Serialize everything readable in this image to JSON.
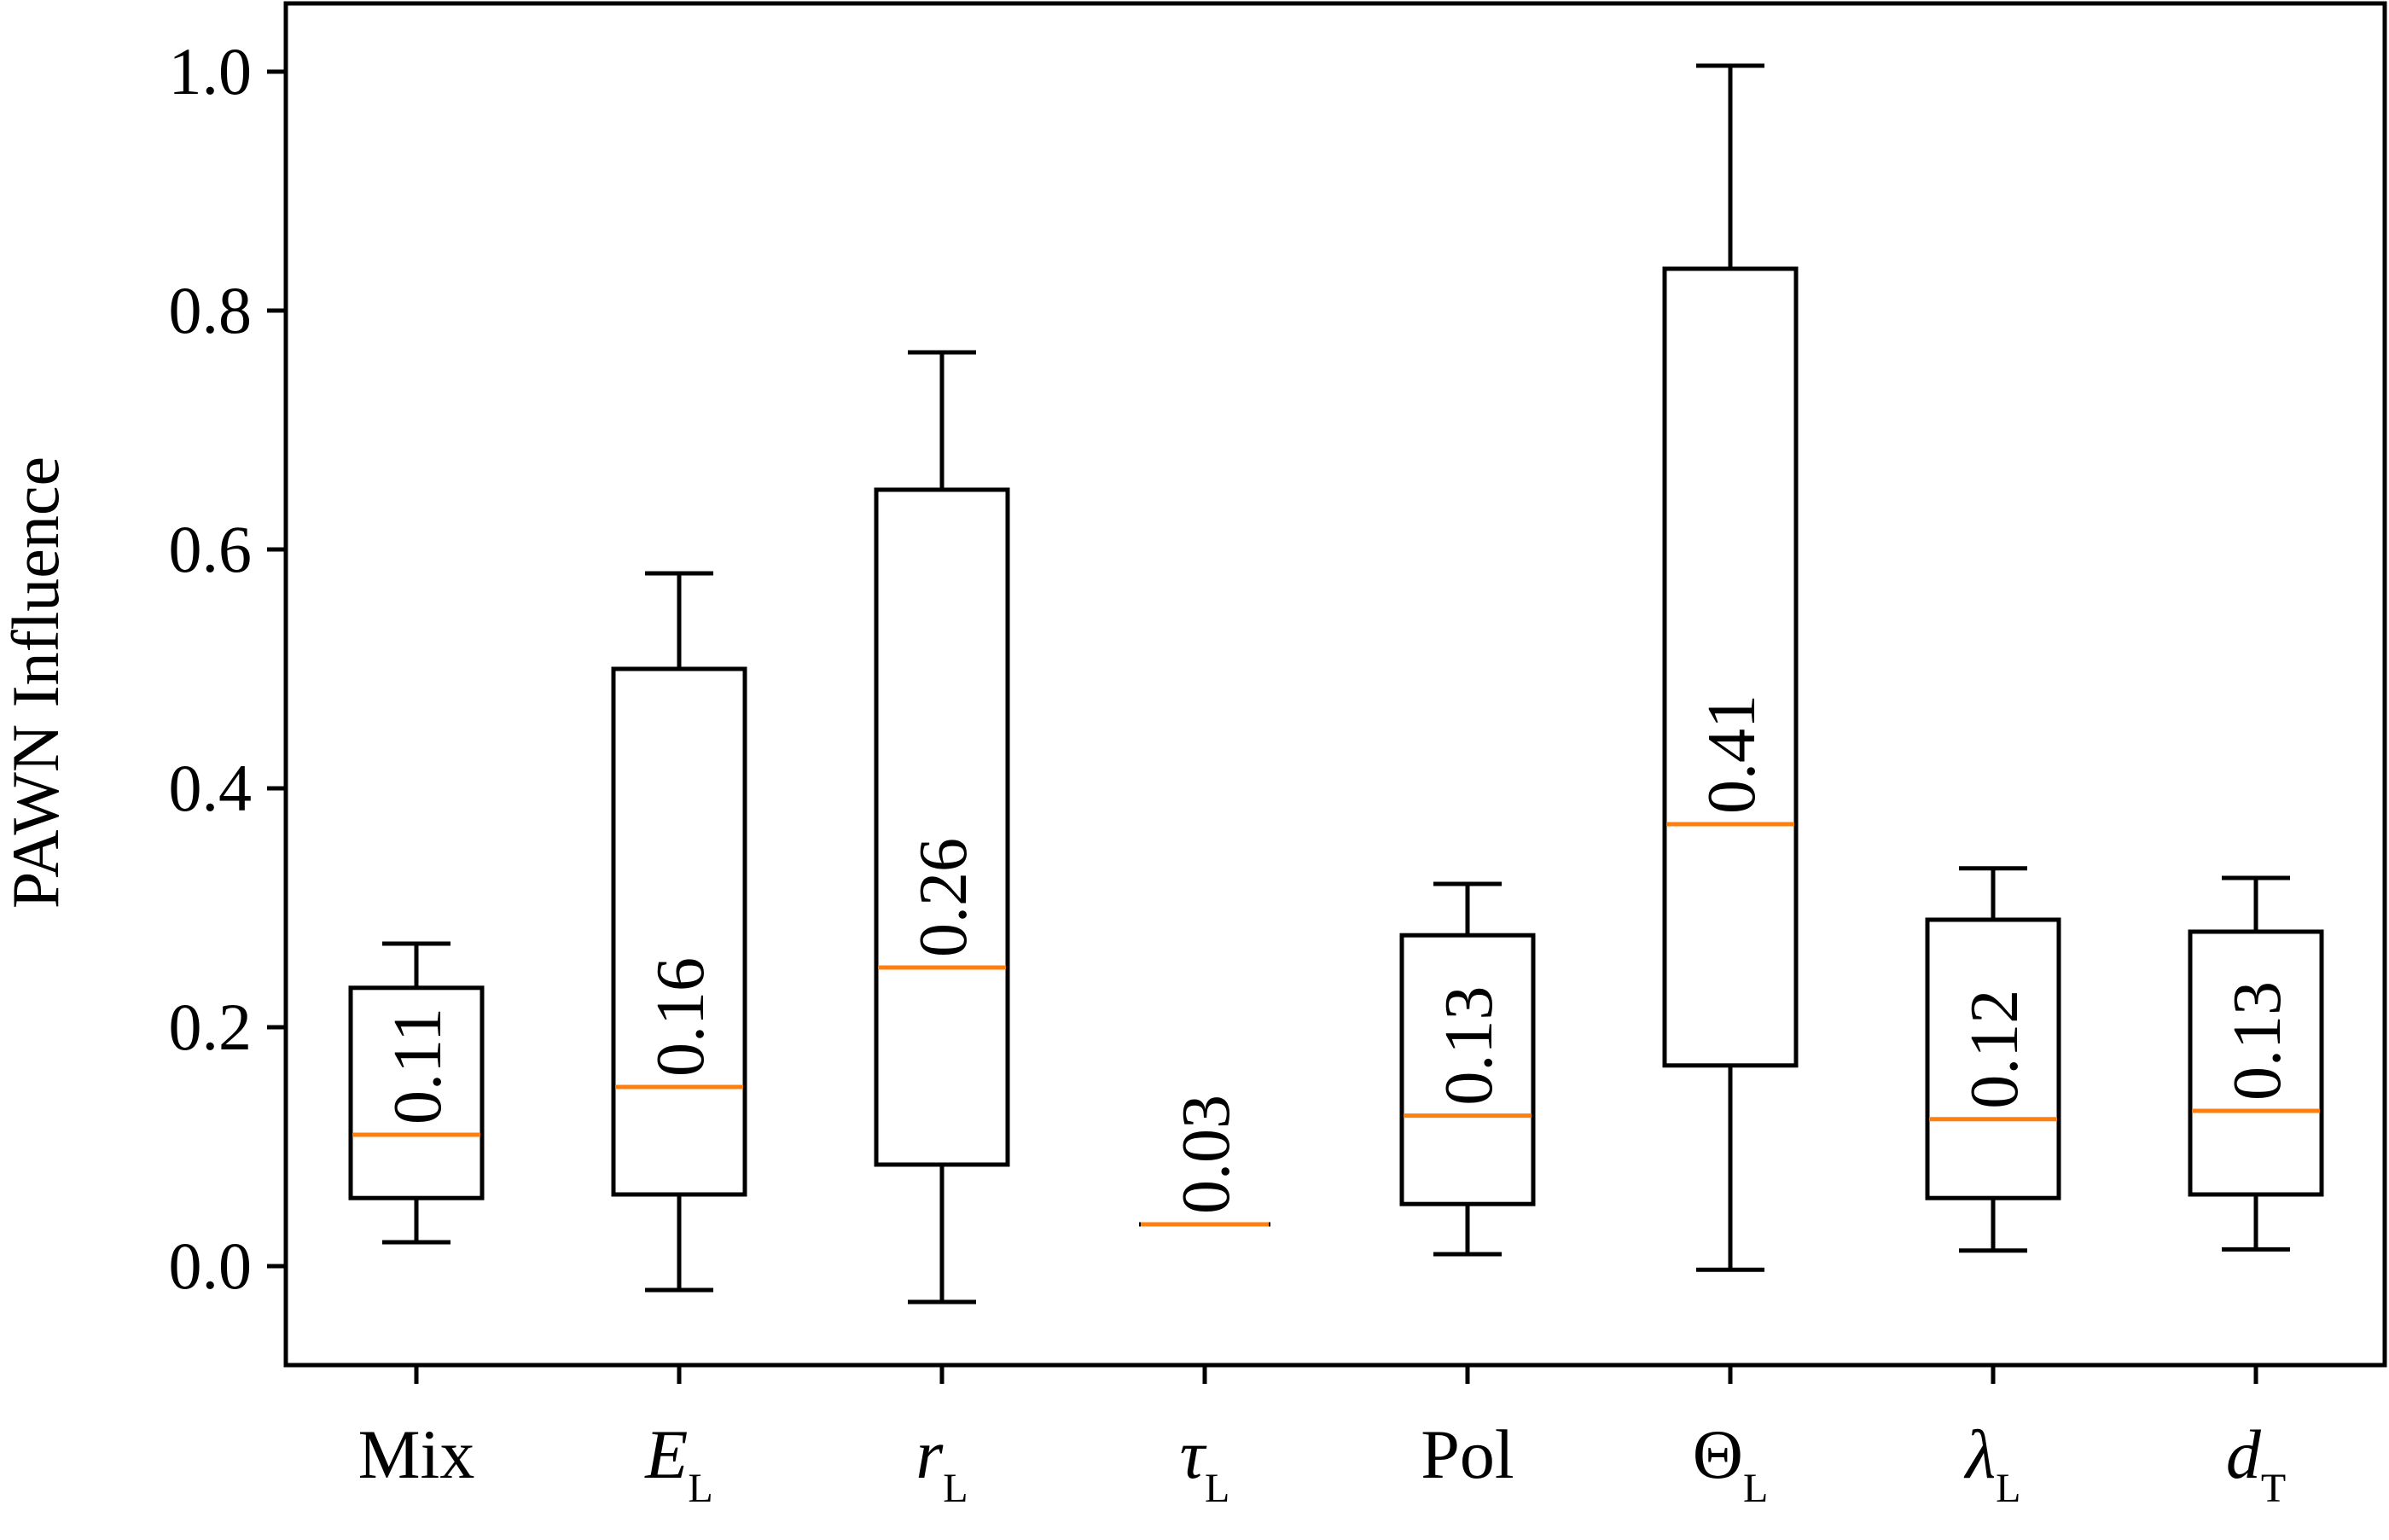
{
  "chart_data": {
    "type": "box",
    "title": "",
    "xlabel": "",
    "ylabel": "PAWN Influence",
    "ylim": [
      -0.08,
      1.06
    ],
    "yticks": [
      0.0,
      0.2,
      0.4,
      0.6,
      0.8,
      1.0
    ],
    "ytick_labels": [
      "0.0",
      "0.2",
      "0.4",
      "0.6",
      "0.8",
      "1.0"
    ],
    "categories": [
      {
        "main": "Mix",
        "sub": "",
        "italic": false
      },
      {
        "main": "E",
        "sub": "L",
        "italic": true
      },
      {
        "main": "r",
        "sub": "L",
        "italic": true
      },
      {
        "main": "τ",
        "sub": "L",
        "italic": true
      },
      {
        "main": "Pol",
        "sub": "",
        "italic": false
      },
      {
        "main": "Θ",
        "sub": "L",
        "italic": false
      },
      {
        "main": "λ",
        "sub": "L",
        "italic": true
      },
      {
        "main": "d",
        "sub": "T",
        "italic": true
      }
    ],
    "boxes": [
      {
        "whislo": 0.02,
        "q1": 0.057,
        "med": 0.11,
        "q3": 0.233,
        "whishi": 0.27,
        "label": "0.11"
      },
      {
        "whislo": -0.02,
        "q1": 0.06,
        "med": 0.15,
        "q3": 0.5,
        "whishi": 0.58,
        "label": "0.16"
      },
      {
        "whislo": -0.03,
        "q1": 0.085,
        "med": 0.25,
        "q3": 0.65,
        "whishi": 0.765,
        "label": "0.26"
      },
      {
        "whislo": 0.035,
        "q1": 0.035,
        "med": 0.035,
        "q3": 0.035,
        "whishi": 0.035,
        "label": "0.03"
      },
      {
        "whislo": 0.01,
        "q1": 0.052,
        "med": 0.126,
        "q3": 0.277,
        "whishi": 0.32,
        "label": "0.13"
      },
      {
        "whislo": -0.003,
        "q1": 0.168,
        "med": 0.37,
        "q3": 0.835,
        "whishi": 1.005,
        "label": "0.41"
      },
      {
        "whislo": 0.013,
        "q1": 0.057,
        "med": 0.123,
        "q3": 0.29,
        "whishi": 0.333,
        "label": "0.12"
      },
      {
        "whislo": 0.014,
        "q1": 0.06,
        "med": 0.13,
        "q3": 0.28,
        "whishi": 0.325,
        "label": "0.13"
      }
    ],
    "colors": {
      "box": "#000000",
      "median": "#ff7f0e",
      "background": "#ffffff"
    }
  }
}
